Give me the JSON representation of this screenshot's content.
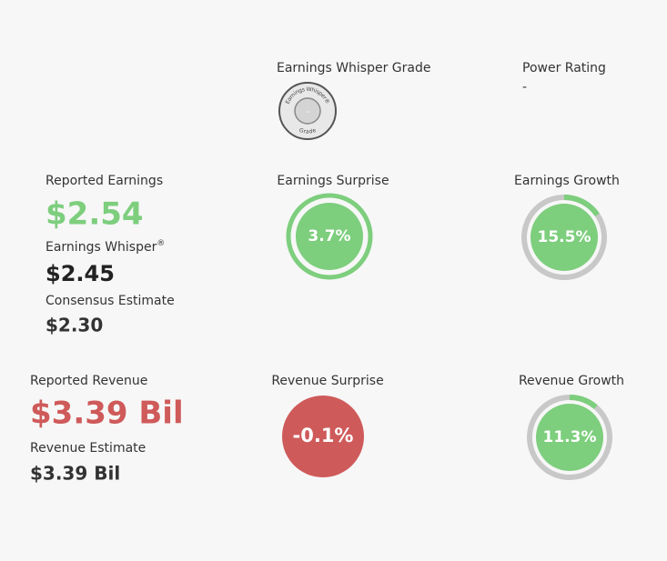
{
  "grade": {
    "title": "Earnings Whisper Grade",
    "badge_top": "Earnings Whisper",
    "badge_mark": "®",
    "badge_bottom": "Grade",
    "value": "-"
  },
  "power_rating": {
    "title": "Power Rating",
    "value": "-"
  },
  "earnings": {
    "reported_label": "Reported Earnings",
    "reported": "$2.54",
    "whisper_label": "Earnings Whisper",
    "whisper_mark": "®",
    "whisper": "$2.45",
    "consensus_label": "Consensus Estimate",
    "consensus": "$2.30",
    "surprise_label": "Earnings Surprise",
    "surprise": "3.7%",
    "growth_label": "Earnings Growth",
    "growth": {
      "value": 15.5,
      "label": "15.5%"
    }
  },
  "revenue": {
    "reported_label": "Reported Revenue",
    "reported": "$3.39 Bil",
    "estimate_label": "Revenue Estimate",
    "estimate": "$3.39 Bil",
    "surprise_label": "Revenue Surprise",
    "surprise": "-0.1%",
    "growth_label": "Revenue Growth",
    "growth": {
      "value": 11.3,
      "label": "11.3%"
    }
  }
}
